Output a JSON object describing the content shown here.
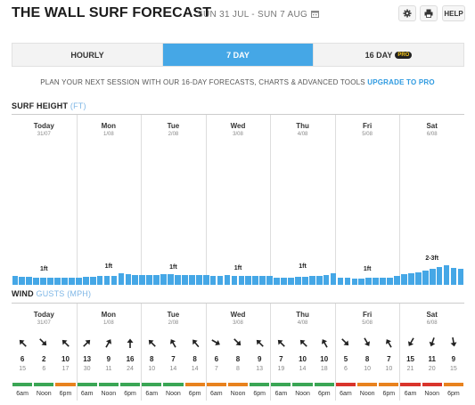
{
  "header": {
    "title": "THE WALL SURF FORECAST",
    "date_range": "SUN 31 JUL - SUN 7 AUG",
    "help_label": "HELP"
  },
  "tabs": [
    {
      "label": "HOURLY",
      "active": false
    },
    {
      "label": "7 DAY",
      "active": true
    },
    {
      "label": "16 DAY",
      "active": false,
      "badge": "PRO"
    }
  ],
  "promo": {
    "text": "PLAN YOUR NEXT SESSION WITH OUR 16-DAY FORECASTS, CHARTS & ADVANCED TOOLS ",
    "link": "UPGRADE TO PRO"
  },
  "surf": {
    "title": "SURF HEIGHT",
    "unit": "(FT)",
    "days": [
      {
        "name": "Today",
        "date": "31/07",
        "label": "1ft"
      },
      {
        "name": "Mon",
        "date": "1/08",
        "label": "1ft"
      },
      {
        "name": "Tue",
        "date": "2/08",
        "label": "1ft"
      },
      {
        "name": "Wed",
        "date": "3/08",
        "label": "1ft"
      },
      {
        "name": "Thu",
        "date": "4/08",
        "label": "1ft"
      },
      {
        "name": "Fri",
        "date": "5/08",
        "label": "1ft"
      },
      {
        "name": "Sat",
        "date": "6/08",
        "label": "2-3ft"
      }
    ],
    "bar_heights_ft": [
      1.2,
      1.1,
      1.1,
      1.0,
      1.0,
      1.0,
      1.0,
      1.0,
      1.0,
      1.0,
      1.1,
      1.1,
      1.2,
      1.2,
      1.2,
      1.6,
      1.4,
      1.3,
      1.3,
      1.3,
      1.3,
      1.4,
      1.4,
      1.3,
      1.3,
      1.3,
      1.3,
      1.3,
      1.2,
      1.2,
      1.3,
      1.2,
      1.2,
      1.2,
      1.2,
      1.2,
      1.2,
      1.0,
      1.0,
      1.0,
      1.1,
      1.1,
      1.2,
      1.2,
      1.3,
      1.5,
      0.9,
      0.9,
      0.8,
      0.8,
      0.9,
      0.9,
      1.0,
      1.0,
      1.2,
      1.4,
      1.6,
      1.7,
      1.9,
      2.1,
      2.4,
      2.6,
      2.3,
      2.1
    ]
  },
  "wind": {
    "title": "WIND",
    "unit": "GUSTS (MPH)",
    "time_labels": [
      "6am",
      "Noon",
      "6pm"
    ],
    "days": [
      {
        "name": "Today",
        "date": "31/07",
        "slots": [
          {
            "speed": "6",
            "gust": "15",
            "dir": 315,
            "rating": "#3aa655"
          },
          {
            "speed": "2",
            "gust": "6",
            "dir": 135,
            "rating": "#3aa655"
          },
          {
            "speed": "10",
            "gust": "17",
            "dir": 315,
            "rating": "#e8821e"
          }
        ]
      },
      {
        "name": "Mon",
        "date": "1/08",
        "slots": [
          {
            "speed": "13",
            "gust": "30",
            "dir": 45,
            "rating": "#3aa655"
          },
          {
            "speed": "9",
            "gust": "11",
            "dir": 30,
            "rating": "#3aa655"
          },
          {
            "speed": "16",
            "gust": "24",
            "dir": 0,
            "rating": "#3aa655"
          }
        ]
      },
      {
        "name": "Tue",
        "date": "2/08",
        "slots": [
          {
            "speed": "8",
            "gust": "10",
            "dir": 315,
            "rating": "#3aa655"
          },
          {
            "speed": "7",
            "gust": "14",
            "dir": 330,
            "rating": "#3aa655"
          },
          {
            "speed": "8",
            "gust": "14",
            "dir": 320,
            "rating": "#e8821e"
          }
        ]
      },
      {
        "name": "Wed",
        "date": "3/08",
        "slots": [
          {
            "speed": "6",
            "gust": "7",
            "dir": 120,
            "rating": "#e8821e"
          },
          {
            "speed": "8",
            "gust": "8",
            "dir": 135,
            "rating": "#e8821e"
          },
          {
            "speed": "9",
            "gust": "13",
            "dir": 315,
            "rating": "#3aa655"
          }
        ]
      },
      {
        "name": "Thu",
        "date": "4/08",
        "slots": [
          {
            "speed": "7",
            "gust": "19",
            "dir": 315,
            "rating": "#3aa655"
          },
          {
            "speed": "10",
            "gust": "14",
            "dir": 315,
            "rating": "#3aa655"
          },
          {
            "speed": "10",
            "gust": "18",
            "dir": 330,
            "rating": "#3aa655"
          }
        ]
      },
      {
        "name": "Fri",
        "date": "5/08",
        "slots": [
          {
            "speed": "5",
            "gust": "6",
            "dir": 135,
            "rating": "#d9342b"
          },
          {
            "speed": "8",
            "gust": "10",
            "dir": 150,
            "rating": "#e8821e"
          },
          {
            "speed": "7",
            "gust": "10",
            "dir": 330,
            "rating": "#e8821e"
          }
        ]
      },
      {
        "name": "Sat",
        "date": "6/08",
        "slots": [
          {
            "speed": "15",
            "gust": "21",
            "dir": 210,
            "rating": "#d9342b"
          },
          {
            "speed": "11",
            "gust": "20",
            "dir": 200,
            "rating": "#d9342b"
          },
          {
            "speed": "9",
            "gust": "15",
            "dir": 170,
            "rating": "#e8821e"
          }
        ]
      }
    ]
  },
  "colors": {
    "accent": "#45a7e6",
    "good": "#3aa655",
    "fair": "#e8821e",
    "poor": "#d9342b"
  }
}
